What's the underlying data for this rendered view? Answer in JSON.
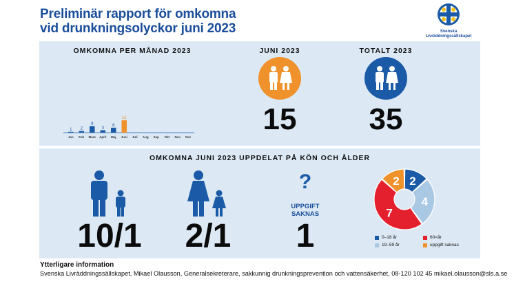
{
  "header": {
    "title_line1": "Preliminär rapport för omkomna",
    "title_line2": "vid drunkningsolyckor juni 2023",
    "logo_line1": "Svenska",
    "logo_line2": "Livräddningssällskapet"
  },
  "monthly": {
    "heading": "OMKOMNA PER MÅNAD 2023"
  },
  "june": {
    "heading": "JUNI 2023",
    "value": "15"
  },
  "total": {
    "heading": "TOTALT 2023",
    "value": "35"
  },
  "breakdown": {
    "heading": "OMKOMNA JUNI 2023 UPPDELAT PÅ KÖN OCH ÅLDER",
    "men": "10/1",
    "women": "2/1",
    "unknown_symbol": "?",
    "unknown_label_line1": "UPPGIFT",
    "unknown_label_line2": "SAKNAS",
    "unknown": "1"
  },
  "legend": [
    {
      "label": "0–18 år",
      "color": "#1b5aa6"
    },
    {
      "label": "60<år",
      "color": "#e5202e"
    },
    {
      "label": "19–59 år",
      "color": "#a9c8e4"
    },
    {
      "label": "uppgift saknas",
      "color": "#f0922b"
    }
  ],
  "footer": {
    "title": "Ytterligare information",
    "text": "Svenska Livräddningssällskapet, Mikael Olausson, Generalsekreterare, sakkunnig drunkningsprevention och vattensäkerhet, 08-120 102 45  mikael.olausson@sls.a.se"
  },
  "colors": {
    "blue": "#1b5aa6",
    "orange": "#f0922b",
    "red": "#e5202e",
    "light_blue": "#a9c8e4",
    "panel": "#dce9f5"
  },
  "chart_data": [
    {
      "type": "bar",
      "title": "OMKOMNA PER MÅNAD 2023",
      "categories": [
        "Jan",
        "Feb",
        "Mars",
        "April",
        "Maj",
        "Juni",
        "Juli",
        "Aug",
        "Sep",
        "Okt",
        "Nov",
        "Dec"
      ],
      "values": [
        1,
        2,
        8,
        3,
        6,
        15,
        null,
        null,
        null,
        null,
        null,
        null
      ],
      "highlight_category": "Juni",
      "colors": {
        "default": "#1b5aa6",
        "highlight": "#f0922b"
      },
      "ylim": [
        0,
        15
      ],
      "grid": false
    },
    {
      "type": "pie",
      "variant": "donut",
      "labels": [
        "0–18 år",
        "19–59 år",
        "60<år",
        "uppgift saknas"
      ],
      "values": [
        2,
        4,
        7,
        2
      ],
      "colors": [
        "#1b5aa6",
        "#a9c8e4",
        "#e5202e",
        "#f0922b"
      ]
    }
  ]
}
